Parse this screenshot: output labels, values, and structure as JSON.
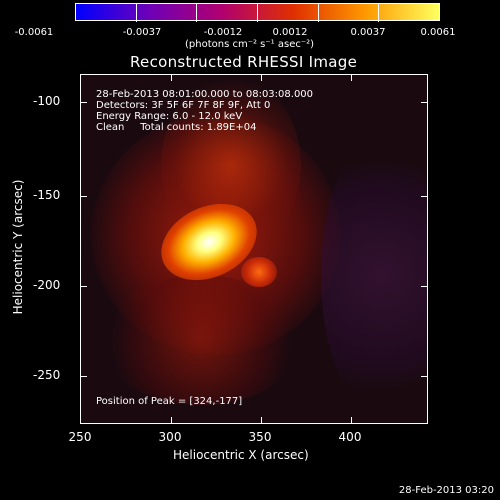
{
  "colorbar": {
    "colors": [
      "#0000ff",
      "#6d00b8",
      "#b00070",
      "#e03000",
      "#ff9a00",
      "#ffff60"
    ],
    "labels": [
      "-0.0061",
      "-0.0037",
      "-0.0012",
      "0.0012",
      "0.0037",
      "0.0061"
    ],
    "units": "(photons cm⁻² s⁻¹ asec⁻²)"
  },
  "image": {
    "title": "Reconstructed RHESSI Image",
    "info": [
      "28-Feb-2013 08:01:00.000 to 08:03:08.000",
      "Detectors: 3F 5F 6F 7F 8F 9F, Att 0",
      "Energy Range: 6.0 - 12.0 keV",
      "Clean     Total counts: 1.89E+04"
    ],
    "peak": "Position of Peak = [324,-177]"
  },
  "axes": {
    "x_title": "Heliocentric X (arcsec)",
    "y_title": "Heliocentric Y (arcsec)",
    "x_ticks": [
      "250",
      "300",
      "350",
      "400"
    ],
    "y_ticks": [
      "-100",
      "-150",
      "-200",
      "-250"
    ]
  },
  "timestamp": "28-Feb-2013 03:20"
}
